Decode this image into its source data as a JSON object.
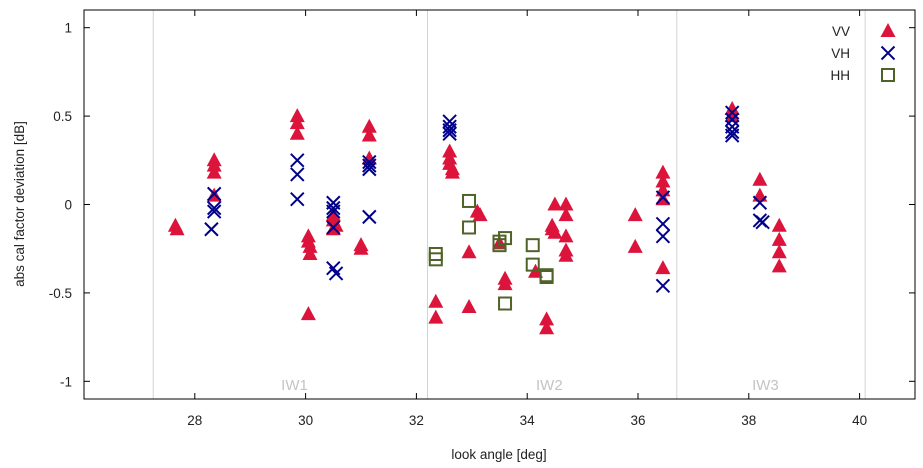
{
  "chart_data": {
    "type": "scatter",
    "title": "",
    "xlabel": "look angle [deg]",
    "ylabel": "abs cal factor deviation [dB]",
    "xlim": [
      26.0,
      41.0
    ],
    "ylim": [
      -1.1,
      1.1
    ],
    "x_ticks": [
      28,
      30,
      32,
      34,
      36,
      38,
      40
    ],
    "y_ticks": [
      -1,
      -0.5,
      0,
      0.5,
      1
    ],
    "y_tick_labels": [
      "-1",
      "-0.5",
      "0",
      "0.5",
      "1"
    ],
    "grid": false,
    "legend_position": "top-right",
    "vertical_lines": [
      27.25,
      32.2,
      36.7,
      40.1
    ],
    "region_labels": [
      {
        "text": "IW1",
        "x": 29.8
      },
      {
        "text": "IW2",
        "x": 34.4
      },
      {
        "text": "IW3",
        "x": 38.3
      }
    ],
    "series": [
      {
        "name": "VV",
        "marker": "triangle",
        "color": "#dc143c",
        "points": [
          [
            27.65,
            -0.12
          ],
          [
            27.68,
            -0.14
          ],
          [
            28.35,
            0.25
          ],
          [
            28.35,
            0.22
          ],
          [
            28.35,
            0.18
          ],
          [
            28.35,
            0.05
          ],
          [
            29.85,
            0.5
          ],
          [
            29.85,
            0.46
          ],
          [
            29.85,
            0.4
          ],
          [
            30.05,
            -0.18
          ],
          [
            30.05,
            -0.21
          ],
          [
            30.08,
            -0.24
          ],
          [
            30.08,
            -0.28
          ],
          [
            30.05,
            -0.62
          ],
          [
            30.5,
            -0.06
          ],
          [
            30.5,
            -0.09
          ],
          [
            30.55,
            -0.12
          ],
          [
            30.5,
            -0.14
          ],
          [
            31.0,
            -0.23
          ],
          [
            31.0,
            -0.25
          ],
          [
            31.15,
            0.44
          ],
          [
            31.15,
            0.39
          ],
          [
            31.15,
            0.26
          ],
          [
            32.35,
            -0.55
          ],
          [
            32.35,
            -0.64
          ],
          [
            32.6,
            0.3
          ],
          [
            32.6,
            0.26
          ],
          [
            32.6,
            0.23
          ],
          [
            32.65,
            0.2
          ],
          [
            32.65,
            0.18
          ],
          [
            32.95,
            -0.27
          ],
          [
            32.95,
            -0.58
          ],
          [
            33.1,
            -0.04
          ],
          [
            33.15,
            -0.06
          ],
          [
            33.5,
            -0.22
          ],
          [
            33.6,
            -0.42
          ],
          [
            33.6,
            -0.45
          ],
          [
            34.15,
            -0.38
          ],
          [
            34.35,
            -0.65
          ],
          [
            34.35,
            -0.7
          ],
          [
            34.5,
            0.0
          ],
          [
            34.45,
            -0.12
          ],
          [
            34.45,
            -0.14
          ],
          [
            34.5,
            -0.16
          ],
          [
            34.7,
            0.0
          ],
          [
            34.7,
            -0.06
          ],
          [
            34.7,
            -0.18
          ],
          [
            34.7,
            -0.26
          ],
          [
            34.7,
            -0.29
          ],
          [
            35.95,
            -0.06
          ],
          [
            35.95,
            -0.24
          ],
          [
            36.45,
            0.18
          ],
          [
            36.45,
            0.13
          ],
          [
            36.45,
            0.08
          ],
          [
            36.45,
            0.03
          ],
          [
            36.45,
            -0.36
          ],
          [
            37.7,
            0.54
          ],
          [
            37.7,
            0.5
          ],
          [
            38.2,
            0.14
          ],
          [
            38.2,
            0.05
          ],
          [
            38.55,
            -0.12
          ],
          [
            38.55,
            -0.2
          ],
          [
            38.55,
            -0.27
          ],
          [
            38.55,
            -0.35
          ]
        ]
      },
      {
        "name": "VH",
        "marker": "x",
        "color": "#00008b",
        "points": [
          [
            28.35,
            0.06
          ],
          [
            28.35,
            -0.02
          ],
          [
            28.35,
            -0.04
          ],
          [
            28.3,
            -0.14
          ],
          [
            29.85,
            0.25
          ],
          [
            29.85,
            0.17
          ],
          [
            29.85,
            0.03
          ],
          [
            30.5,
            0.01
          ],
          [
            30.5,
            -0.02
          ],
          [
            30.5,
            -0.04
          ],
          [
            30.5,
            -0.13
          ],
          [
            30.5,
            -0.36
          ],
          [
            30.55,
            -0.39
          ],
          [
            31.15,
            0.24
          ],
          [
            31.15,
            0.22
          ],
          [
            31.15,
            0.2
          ],
          [
            31.15,
            -0.07
          ],
          [
            32.6,
            0.47
          ],
          [
            32.6,
            0.44
          ],
          [
            32.6,
            0.42
          ],
          [
            32.6,
            0.4
          ],
          [
            36.45,
            0.04
          ],
          [
            36.45,
            -0.11
          ],
          [
            36.45,
            -0.18
          ],
          [
            36.45,
            -0.46
          ],
          [
            37.7,
            0.52
          ],
          [
            37.7,
            0.48
          ],
          [
            37.7,
            0.44
          ],
          [
            37.7,
            0.41
          ],
          [
            37.7,
            0.39
          ],
          [
            38.2,
            0.01
          ],
          [
            38.2,
            -0.09
          ],
          [
            38.25,
            -0.1
          ]
        ]
      },
      {
        "name": "HH",
        "marker": "square",
        "color": "#4f6228",
        "points": [
          [
            32.35,
            -0.28
          ],
          [
            32.35,
            -0.31
          ],
          [
            32.95,
            0.02
          ],
          [
            32.95,
            -0.13
          ],
          [
            33.5,
            -0.21
          ],
          [
            33.5,
            -0.23
          ],
          [
            33.6,
            -0.19
          ],
          [
            33.6,
            -0.56
          ],
          [
            34.1,
            -0.23
          ],
          [
            34.1,
            -0.34
          ],
          [
            34.35,
            -0.4
          ],
          [
            34.35,
            -0.41
          ]
        ]
      }
    ]
  }
}
